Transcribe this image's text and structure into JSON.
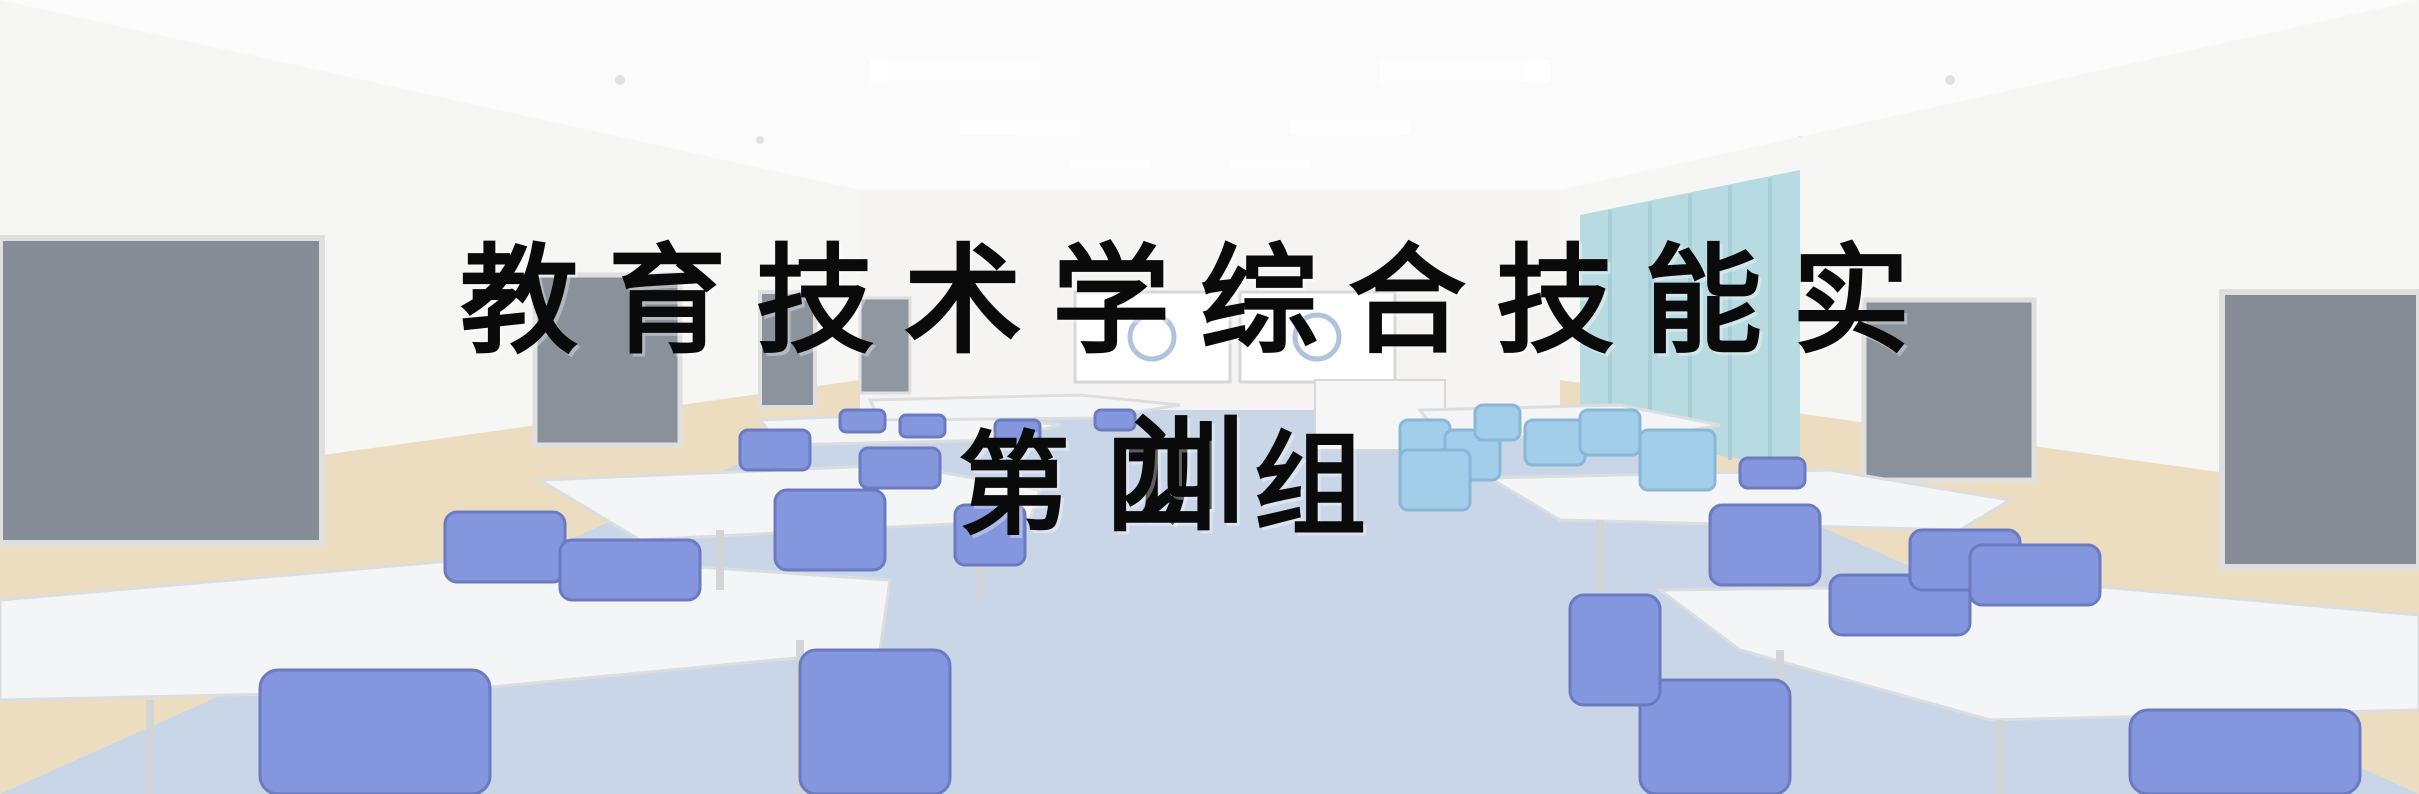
{
  "image": {
    "title": "教育技术学综合技能实训",
    "subtitle": "第四组",
    "scene": "classroom-with-blue-chairs",
    "colors": {
      "chair": "#6a7fd6",
      "table": "#f2f3f4",
      "floor": "#b9cbe3",
      "wall": "#f4f4f2",
      "wood": "#e6d3b0",
      "curtain": "#a9d4dc",
      "screen": "#6b7480"
    }
  }
}
